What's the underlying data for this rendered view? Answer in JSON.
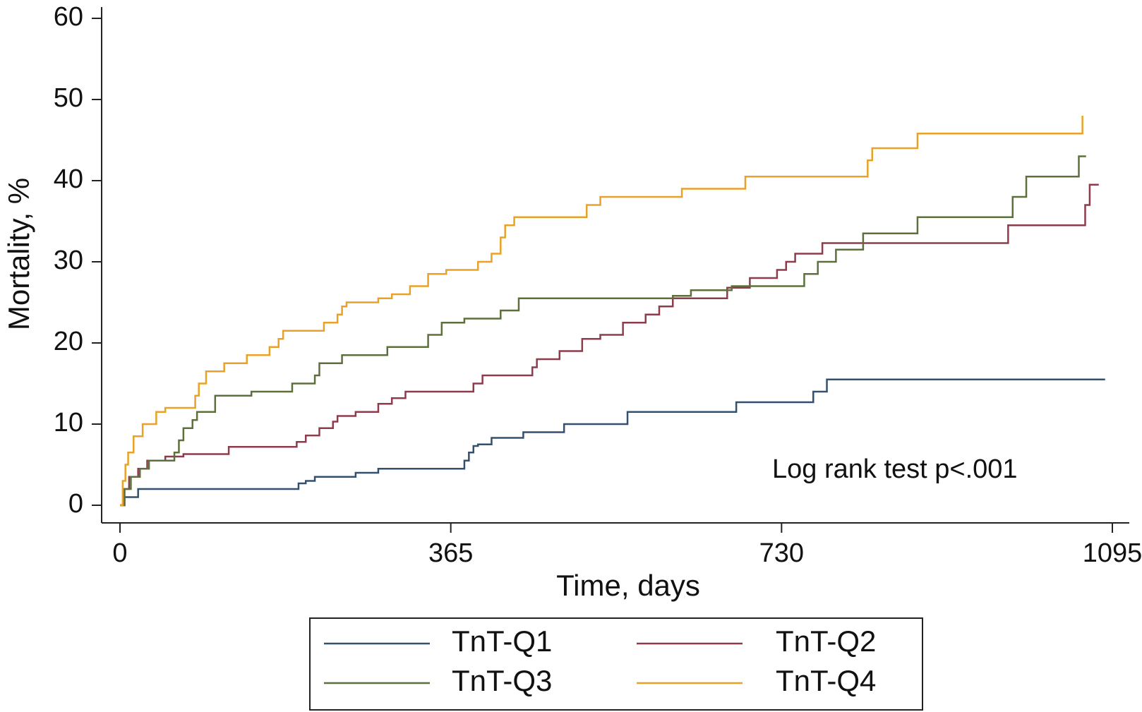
{
  "chart_data": {
    "type": "line",
    "step": true,
    "ylabel": "Mortality, %",
    "xlabel": "Time, days",
    "annotation": "Log rank test p<.001",
    "xlim": [
      0,
      1095
    ],
    "xticks": [
      0,
      365,
      730,
      1095
    ],
    "ylim": [
      0,
      60
    ],
    "yticks": [
      0,
      10,
      20,
      30,
      40,
      50,
      60
    ],
    "legend": "bottom",
    "series": [
      {
        "name": "TnT-Q1",
        "color": "#33506e",
        "x": [
          0,
          5,
          20,
          197,
          205,
          215,
          260,
          285,
          380,
          385,
          390,
          395,
          410,
          445,
          490,
          560,
          680,
          765,
          780,
          1087
        ],
        "values": [
          0,
          1,
          2,
          2.7,
          3,
          3.5,
          4,
          4.5,
          5.5,
          6.5,
          7.3,
          7.5,
          8.3,
          9,
          10,
          11.5,
          12.7,
          14,
          15.5,
          15.5
        ]
      },
      {
        "name": "TnT-Q2",
        "color": "#8e3b4c",
        "x": [
          0,
          5,
          10,
          20,
          30,
          50,
          70,
          120,
          195,
          205,
          220,
          235,
          240,
          260,
          285,
          300,
          315,
          390,
          400,
          455,
          460,
          485,
          510,
          530,
          555,
          580,
          595,
          610,
          670,
          695,
          725,
          735,
          745,
          775,
          980,
          1065,
          1070,
          1080
        ],
        "values": [
          0,
          2,
          3.5,
          4.5,
          5.5,
          6,
          6.3,
          7.2,
          7.8,
          8.6,
          9.5,
          10.3,
          11,
          11.5,
          12.5,
          13.2,
          14,
          15,
          16,
          17,
          18,
          19,
          20.5,
          21,
          22.5,
          23.5,
          24.5,
          25.5,
          26.8,
          28,
          29,
          30,
          31,
          32.3,
          34.5,
          37,
          39.5,
          39.5
        ]
      },
      {
        "name": "TnT-Q3",
        "color": "#5d703c",
        "x": [
          0,
          5,
          12,
          22,
          32,
          60,
          65,
          70,
          80,
          85,
          105,
          145,
          190,
          215,
          220,
          245,
          295,
          340,
          355,
          380,
          420,
          440,
          610,
          630,
          675,
          755,
          770,
          790,
          820,
          880,
          985,
          1000,
          1058,
          1066
        ],
        "values": [
          0,
          2,
          3.5,
          4.5,
          5.5,
          6.5,
          8,
          9.5,
          10.5,
          11.5,
          13.5,
          14,
          15,
          16,
          17.5,
          18.5,
          19.5,
          21,
          22.5,
          23,
          24,
          25.5,
          25.8,
          26.5,
          27,
          28.5,
          30,
          31.5,
          33.5,
          35.5,
          38,
          40.5,
          43,
          43
        ]
      },
      {
        "name": "TnT-Q4",
        "color": "#e9a227",
        "x": [
          0,
          3,
          6,
          9,
          15,
          25,
          40,
          50,
          83,
          87,
          95,
          115,
          140,
          165,
          175,
          180,
          225,
          240,
          245,
          250,
          285,
          300,
          320,
          340,
          360,
          395,
          410,
          420,
          425,
          435,
          515,
          530,
          620,
          690,
          825,
          830,
          880,
          1062
        ],
        "values": [
          0,
          3,
          5,
          6.5,
          8.5,
          10,
          11.5,
          12,
          13.5,
          15,
          16.5,
          17.5,
          18.5,
          19.5,
          20.5,
          21.5,
          22.5,
          23.5,
          24.5,
          25,
          25.5,
          26,
          27,
          28.5,
          29,
          30,
          31,
          33,
          34.5,
          35.5,
          37,
          38,
          39,
          40.5,
          42.5,
          44,
          45.8,
          48
        ]
      }
    ]
  }
}
